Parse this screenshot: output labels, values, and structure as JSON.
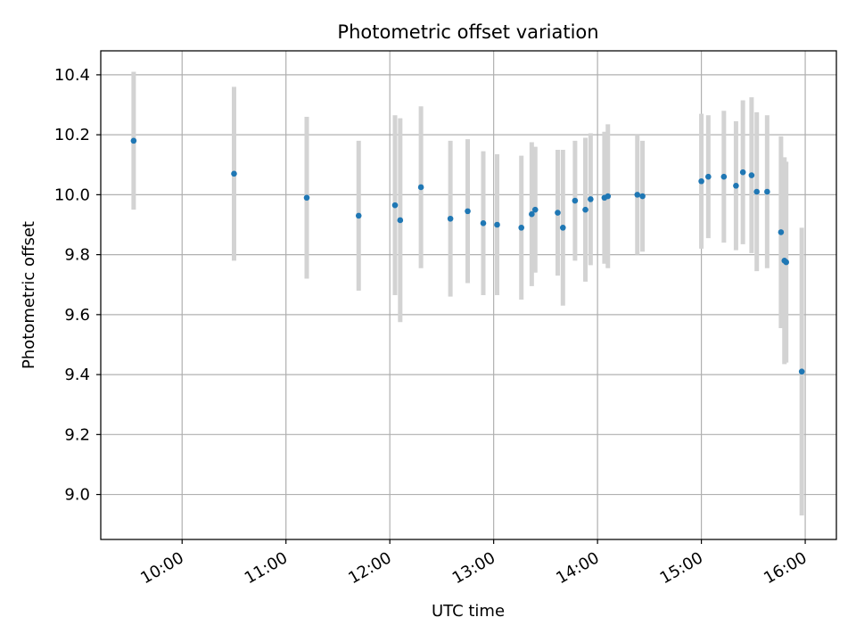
{
  "chart_data": {
    "type": "scatter",
    "title": "Photometric offset variation",
    "xlabel": "UTC time",
    "ylabel": "Photometric offset",
    "x_ticks": [
      "10:00",
      "11:00",
      "12:00",
      "13:00",
      "14:00",
      "15:00",
      "16:00"
    ],
    "y_ticks": [
      "9.0",
      "9.2",
      "9.4",
      "9.6",
      "9.8",
      "10.0",
      "10.2",
      "10.4"
    ],
    "xlim": [
      "09:13",
      "16:18"
    ],
    "ylim": [
      8.85,
      10.48
    ],
    "grid": true,
    "colors": {
      "points": "#1f77b4",
      "errorbars": "#d3d3d3",
      "grid": "#b0b0b0"
    },
    "series": [
      {
        "x": [
          "09:32",
          "10:30",
          "11:12",
          "11:42",
          "12:03",
          "12:06",
          "12:18",
          "12:35",
          "12:45",
          "12:54",
          "13:02",
          "13:16",
          "13:22",
          "13:24",
          "13:37",
          "13:40",
          "13:47",
          "13:53",
          "13:56",
          "14:04",
          "14:06",
          "14:23",
          "14:26",
          "15:00",
          "15:04",
          "15:13",
          "15:20",
          "15:24",
          "15:29",
          "15:32",
          "15:38",
          "15:46",
          "15:48",
          "15:49",
          "15:58"
        ],
        "y": [
          10.18,
          10.07,
          9.99,
          9.93,
          9.965,
          9.915,
          10.025,
          9.92,
          9.945,
          9.905,
          9.9,
          9.89,
          9.935,
          9.95,
          9.94,
          9.89,
          9.98,
          9.95,
          9.985,
          9.99,
          9.995,
          10.0,
          9.995,
          10.045,
          10.06,
          10.06,
          10.03,
          10.075,
          10.065,
          10.01,
          10.01,
          9.875,
          9.78,
          9.775,
          9.41
        ],
        "yerr": [
          0.23,
          0.29,
          0.27,
          0.25,
          0.3,
          0.34,
          0.27,
          0.26,
          0.24,
          0.24,
          0.235,
          0.24,
          0.24,
          0.21,
          0.21,
          0.26,
          0.2,
          0.24,
          0.22,
          0.22,
          0.24,
          0.2,
          0.185,
          0.225,
          0.205,
          0.22,
          0.215,
          0.24,
          0.26,
          0.265,
          0.255,
          0.32,
          0.345,
          0.335,
          0.48
        ]
      }
    ]
  }
}
